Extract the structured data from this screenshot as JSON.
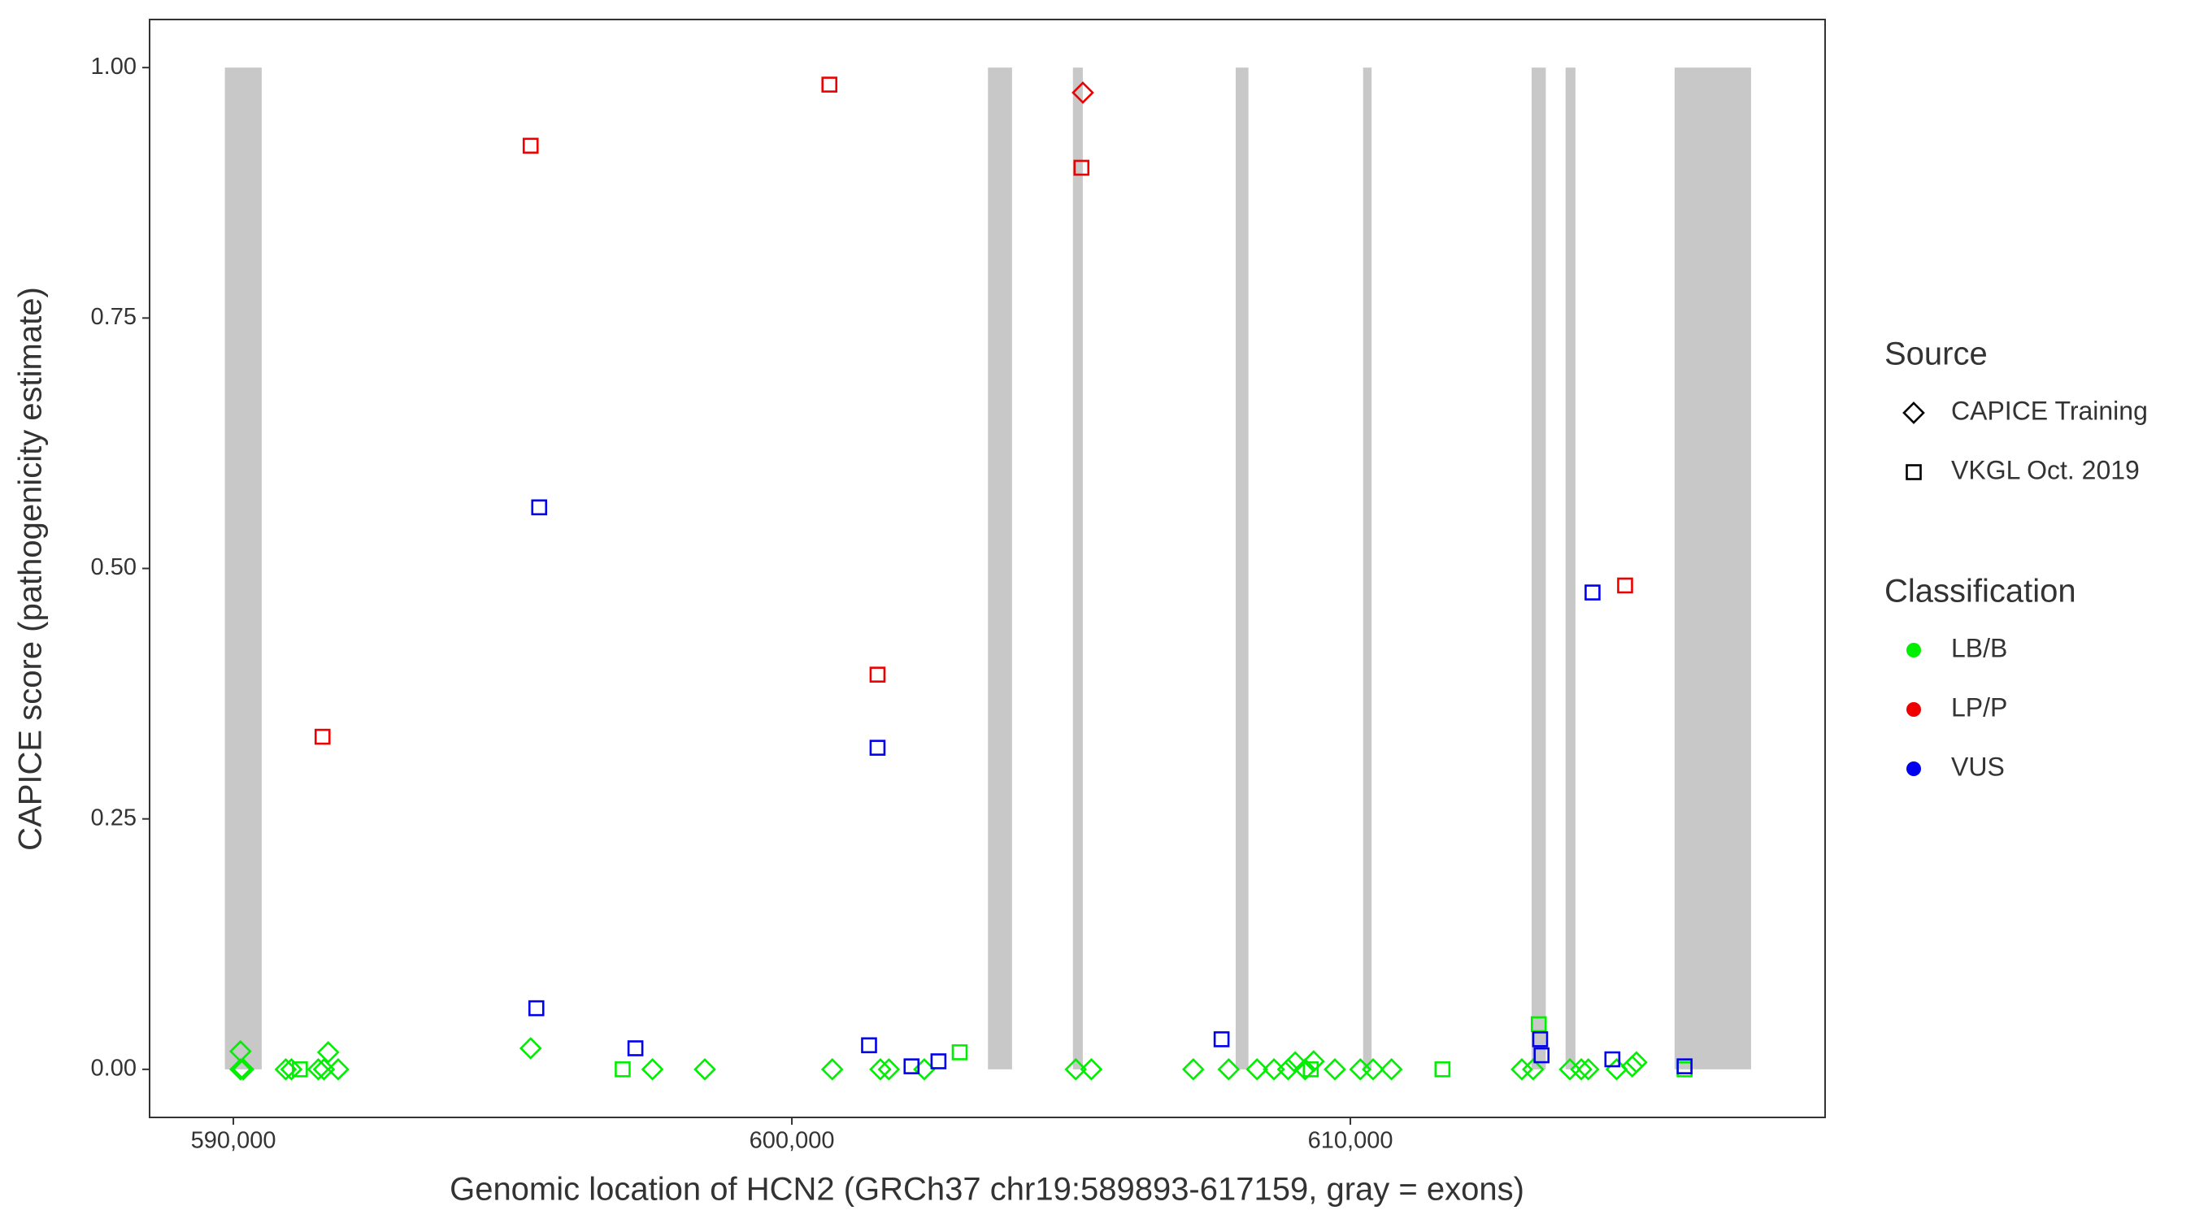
{
  "chart_data": {
    "type": "scatter",
    "x_label": "Genomic location of HCN2 (GRCh37 chr19:589893-617159, gray = exons)",
    "y_label": "CAPICE score (pathogenicity estimate)",
    "xlim": [
      588500,
      618500
    ],
    "ylim": [
      -0.048,
      1.048
    ],
    "xticks": [
      {
        "value": 590000,
        "label": "590,000"
      },
      {
        "value": 600000,
        "label": "600,000"
      },
      {
        "value": 610000,
        "label": "610,000"
      }
    ],
    "yticks": [
      {
        "value": 0,
        "label": "0.00"
      },
      {
        "value": 0.25,
        "label": "0.25"
      },
      {
        "value": 0.5,
        "label": "0.50"
      },
      {
        "value": 0.75,
        "label": "0.75"
      },
      {
        "value": 1,
        "label": "1.00"
      }
    ],
    "exons": [
      [
        589848,
        590507
      ],
      [
        603511,
        603942
      ],
      [
        605032,
        605209
      ],
      [
        607947,
        608175
      ],
      [
        610228,
        610380
      ],
      [
        613245,
        613499
      ],
      [
        613853,
        614030
      ],
      [
        615805,
        617174
      ]
    ],
    "exon_color": "#c8c8c8",
    "source_legend": {
      "title": "Source",
      "entries": [
        {
          "label": "CAPICE Training",
          "shape": "diamond"
        },
        {
          "label": "VKGL Oct. 2019",
          "shape": "square"
        }
      ]
    },
    "classification_legend": {
      "title": "Classification",
      "entries": [
        {
          "label": "LB/B",
          "color": "#00ee00"
        },
        {
          "label": "LP/P",
          "color": "#ee0000"
        },
        {
          "label": "VUS",
          "color": "#0000ee"
        }
      ]
    },
    "series": [
      {
        "color": "#00ee00",
        "shape": "diamond",
        "x": [
          590127,
          590127,
          590177,
          590938,
          591039,
          591521,
          591622,
          591698,
          591876,
          595323,
          597504,
          598442,
          600723,
          601585,
          601737,
          602371,
          605083,
          605362,
          607187,
          607821,
          608328,
          608632,
          608885,
          609012,
          609190,
          609342,
          609722,
          610179,
          610407,
          610736,
          613069,
          613272,
          613931,
          614134,
          614260,
          614767,
          615046,
          615122
        ],
        "values": [
          0.018,
          0,
          0,
          0,
          0,
          0,
          0,
          0.017,
          0,
          0.021,
          0,
          0,
          0,
          0,
          0,
          0,
          0,
          0,
          0,
          0,
          0,
          0,
          0,
          0.007,
          0,
          0.008,
          0,
          0,
          0,
          0,
          0,
          0,
          0,
          0,
          0,
          0,
          0.003,
          0.007
        ]
      },
      {
        "color": "#00ee00",
        "shape": "square",
        "x": [
          591191,
          596971,
          603005,
          609291,
          611649,
          613373,
          615984
        ],
        "values": [
          0,
          0,
          0.017,
          0,
          0,
          0.045,
          0
        ]
      },
      {
        "color": "#ee0000",
        "shape": "diamond",
        "x": [
          605210
        ],
        "values": [
          0.975
        ]
      },
      {
        "color": "#ee0000",
        "shape": "square",
        "x": [
          591597,
          595323,
          600672,
          601534,
          605185,
          614919
        ],
        "values": [
          0.332,
          0.922,
          0.983,
          0.394,
          0.9,
          0.483
        ]
      },
      {
        "color": "#0000ee",
        "shape": "square",
        "x": [
          595425,
          595476,
          597199,
          601382,
          601534,
          602143,
          602625,
          607694,
          613398,
          613423,
          614336,
          614691,
          615984
        ],
        "values": [
          0.061,
          0.561,
          0.021,
          0.024,
          0.321,
          0.003,
          0.008,
          0.03,
          0.03,
          0.014,
          0.476,
          0.01,
          0.003
        ]
      }
    ]
  }
}
